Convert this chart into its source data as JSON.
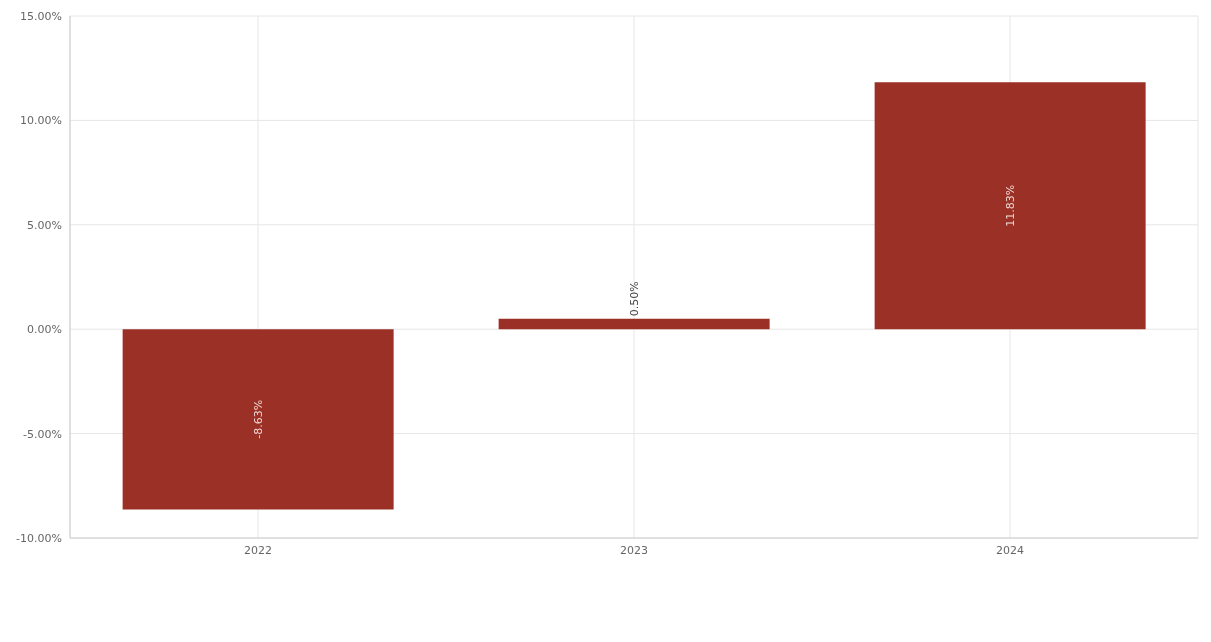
{
  "chart_data": {
    "type": "bar",
    "categories": [
      "2022",
      "2023",
      "2024"
    ],
    "series": [
      {
        "color": "#9a3026",
        "values": [
          -8.63,
          0.5,
          11.83
        ],
        "value_labels": [
          "-8.63%",
          "0.50%",
          "11.83%"
        ]
      }
    ],
    "ylim": [
      -10,
      15
    ],
    "yticks": [
      {
        "value": -10,
        "label": "-10.00%"
      },
      {
        "value": -5,
        "label": "-5.00%"
      },
      {
        "value": 0,
        "label": "0.00%"
      },
      {
        "value": 5,
        "label": "5.00%"
      },
      {
        "value": 10,
        "label": "10.00%"
      },
      {
        "value": 15,
        "label": "15.00%"
      }
    ],
    "grid": true
  }
}
